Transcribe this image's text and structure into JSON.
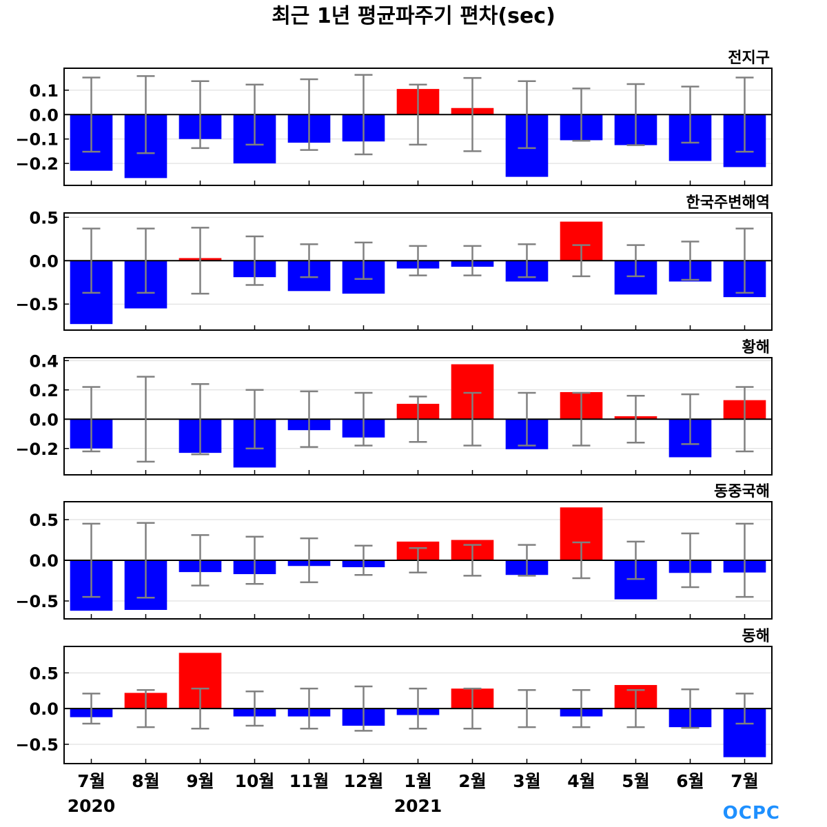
{
  "colors": {
    "positive": "#ff0000",
    "negative": "#0000ff",
    "error_bar": "#808080",
    "zero_line": "#000000",
    "grid": "#d9d9d9",
    "logo": "#1e90ff"
  },
  "logo": {
    "text": "OCPC"
  },
  "chart_data": {
    "type": "bar",
    "title": "최근 1년 평균파주기 편차(sec)",
    "categories": [
      "7월",
      "8월",
      "9월",
      "10월",
      "11월",
      "12월",
      "1월",
      "2월",
      "3월",
      "4월",
      "5월",
      "6월",
      "7월"
    ],
    "year_labels": [
      {
        "label": "2020",
        "category_index": 0
      },
      {
        "label": "2021",
        "category_index": 6
      }
    ],
    "panels": [
      {
        "name": "전지구",
        "ylim": [
          -0.29,
          0.19
        ],
        "yticks": [
          0.1,
          0.0,
          -0.1,
          -0.2
        ],
        "ytick_labels": [
          "0.1",
          "0.0",
          "−0.1",
          "−0.2"
        ],
        "values": [
          -0.23,
          -0.26,
          -0.1,
          -0.2,
          -0.115,
          -0.11,
          0.105,
          0.027,
          -0.255,
          -0.105,
          -0.125,
          -0.19,
          -0.215
        ],
        "error": [
          0.152,
          0.158,
          0.137,
          0.123,
          0.145,
          0.163,
          0.123,
          0.15,
          0.137,
          0.107,
          0.125,
          0.115,
          0.152
        ]
      },
      {
        "name": "한국주변해역",
        "ylim": [
          -0.8,
          0.55
        ],
        "yticks": [
          0.5,
          0.0,
          -0.5
        ],
        "ytick_labels": [
          "0.5",
          "0.0",
          "−0.5"
        ],
        "values": [
          -0.73,
          -0.55,
          0.03,
          -0.19,
          -0.35,
          -0.38,
          -0.09,
          -0.07,
          -0.24,
          0.45,
          -0.39,
          -0.24,
          -0.42
        ],
        "error": [
          0.37,
          0.37,
          0.38,
          0.28,
          0.19,
          0.21,
          0.17,
          0.17,
          0.19,
          0.18,
          0.18,
          0.22,
          0.37
        ]
      },
      {
        "name": "황해",
        "ylim": [
          -0.38,
          0.42
        ],
        "yticks": [
          0.4,
          0.2,
          0.0,
          -0.2
        ],
        "ytick_labels": [
          "0.4",
          "0.2",
          "0.0",
          "−0.2"
        ],
        "values": [
          -0.2,
          0.0,
          -0.23,
          -0.33,
          -0.075,
          -0.125,
          0.105,
          0.375,
          -0.205,
          0.185,
          0.02,
          -0.26,
          0.13
        ],
        "error": [
          0.22,
          0.29,
          0.24,
          0.2,
          0.19,
          0.18,
          0.155,
          0.18,
          0.18,
          0.18,
          0.16,
          0.17,
          0.22
        ]
      },
      {
        "name": "동중국해",
        "ylim": [
          -0.72,
          0.72
        ],
        "yticks": [
          0.5,
          0.0,
          -0.5
        ],
        "ytick_labels": [
          "0.5",
          "0.0",
          "−0.5"
        ],
        "values": [
          -0.62,
          -0.61,
          -0.145,
          -0.17,
          -0.07,
          -0.085,
          0.23,
          0.25,
          -0.18,
          0.65,
          -0.48,
          -0.155,
          -0.15
        ],
        "error": [
          0.45,
          0.46,
          0.31,
          0.29,
          0.27,
          0.18,
          0.15,
          0.19,
          0.19,
          0.22,
          0.23,
          0.33,
          0.45
        ]
      },
      {
        "name": "동해",
        "ylim": [
          -0.77,
          0.87
        ],
        "yticks": [
          0.5,
          0.0,
          -0.5
        ],
        "ytick_labels": [
          "0.5",
          "0.0",
          "−0.5"
        ],
        "values": [
          -0.12,
          0.22,
          0.78,
          -0.11,
          -0.11,
          -0.24,
          -0.09,
          0.28,
          0.0,
          -0.11,
          0.33,
          -0.26,
          -0.68
        ],
        "error": [
          0.21,
          0.26,
          0.28,
          0.24,
          0.28,
          0.31,
          0.28,
          0.28,
          0.26,
          0.26,
          0.26,
          0.27,
          0.21
        ]
      }
    ]
  }
}
